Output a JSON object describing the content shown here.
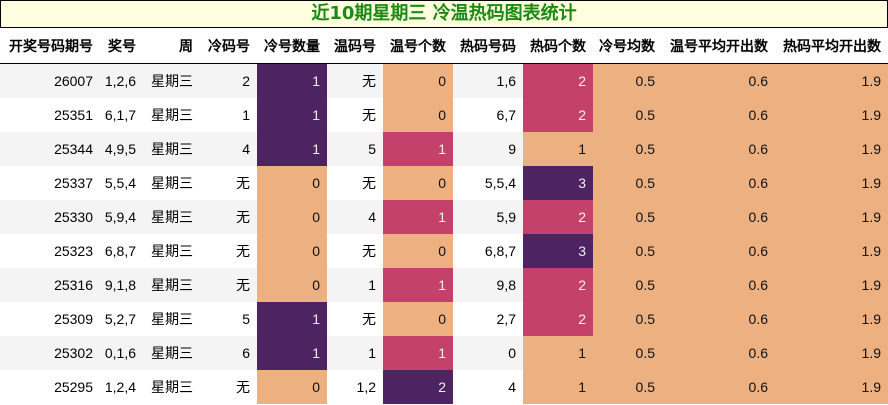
{
  "title": "近10期星期三 冷温热码图表统计",
  "colors": {
    "title_text": "#1a8a12",
    "title_bg": "#ffffe0",
    "purple": "#4d2362",
    "pink": "#c3416a",
    "orange": "#edb081",
    "row_alt": "#f4f4f4"
  },
  "columns": [
    "开奖号码期号",
    "奖号",
    "周",
    "冷码号",
    "冷号数量",
    "温码号",
    "温号个数",
    "热码号码",
    "热码个数",
    "冷号均数",
    "温号平均开出数",
    "热码平均开出数"
  ],
  "rows": [
    {
      "issue": "26007",
      "numbers": "1,2,6",
      "weekday": "星期三",
      "cold_nums": "2",
      "cold_count": "1",
      "warm_nums": "无",
      "warm_count": "0",
      "hot_nums": "1,6",
      "hot_count": "2",
      "cold_avg": "0.5",
      "warm_avg": "0.6",
      "hot_avg": "1.9"
    },
    {
      "issue": "25351",
      "numbers": "6,1,7",
      "weekday": "星期三",
      "cold_nums": "1",
      "cold_count": "1",
      "warm_nums": "无",
      "warm_count": "0",
      "hot_nums": "6,7",
      "hot_count": "2",
      "cold_avg": "0.5",
      "warm_avg": "0.6",
      "hot_avg": "1.9"
    },
    {
      "issue": "25344",
      "numbers": "4,9,5",
      "weekday": "星期三",
      "cold_nums": "4",
      "cold_count": "1",
      "warm_nums": "5",
      "warm_count": "1",
      "hot_nums": "9",
      "hot_count": "1",
      "cold_avg": "0.5",
      "warm_avg": "0.6",
      "hot_avg": "1.9"
    },
    {
      "issue": "25337",
      "numbers": "5,5,4",
      "weekday": "星期三",
      "cold_nums": "无",
      "cold_count": "0",
      "warm_nums": "无",
      "warm_count": "0",
      "hot_nums": "5,5,4",
      "hot_count": "3",
      "cold_avg": "0.5",
      "warm_avg": "0.6",
      "hot_avg": "1.9"
    },
    {
      "issue": "25330",
      "numbers": "5,9,4",
      "weekday": "星期三",
      "cold_nums": "无",
      "cold_count": "0",
      "warm_nums": "4",
      "warm_count": "1",
      "hot_nums": "5,9",
      "hot_count": "2",
      "cold_avg": "0.5",
      "warm_avg": "0.6",
      "hot_avg": "1.9"
    },
    {
      "issue": "25323",
      "numbers": "6,8,7",
      "weekday": "星期三",
      "cold_nums": "无",
      "cold_count": "0",
      "warm_nums": "无",
      "warm_count": "0",
      "hot_nums": "6,8,7",
      "hot_count": "3",
      "cold_avg": "0.5",
      "warm_avg": "0.6",
      "hot_avg": "1.9"
    },
    {
      "issue": "25316",
      "numbers": "9,1,8",
      "weekday": "星期三",
      "cold_nums": "无",
      "cold_count": "0",
      "warm_nums": "1",
      "warm_count": "1",
      "hot_nums": "9,8",
      "hot_count": "2",
      "cold_avg": "0.5",
      "warm_avg": "0.6",
      "hot_avg": "1.9"
    },
    {
      "issue": "25309",
      "numbers": "5,2,7",
      "weekday": "星期三",
      "cold_nums": "5",
      "cold_count": "1",
      "warm_nums": "无",
      "warm_count": "0",
      "hot_nums": "2,7",
      "hot_count": "2",
      "cold_avg": "0.5",
      "warm_avg": "0.6",
      "hot_avg": "1.9"
    },
    {
      "issue": "25302",
      "numbers": "0,1,6",
      "weekday": "星期三",
      "cold_nums": "6",
      "cold_count": "1",
      "warm_nums": "1",
      "warm_count": "1",
      "hot_nums": "0",
      "hot_count": "1",
      "cold_avg": "0.5",
      "warm_avg": "0.6",
      "hot_avg": "1.9"
    },
    {
      "issue": "25295",
      "numbers": "1,2,4",
      "weekday": "星期三",
      "cold_nums": "无",
      "cold_count": "0",
      "warm_nums": "1,2",
      "warm_count": "2",
      "hot_nums": "4",
      "hot_count": "1",
      "cold_avg": "0.5",
      "warm_avg": "0.6",
      "hot_avg": "1.9"
    }
  ]
}
